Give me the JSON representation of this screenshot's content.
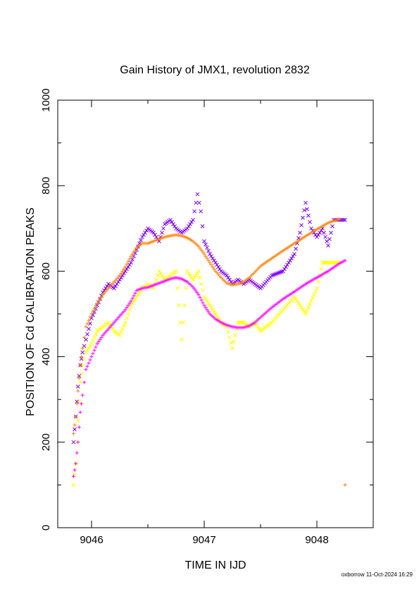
{
  "chart_data": {
    "type": "scatter",
    "title": "Gain History of JMX1, revolution 2832",
    "xlabel": "TIME IN IJD",
    "ylabel": "POSITION OF Cd CALIBRATION PEAKS",
    "xlim": [
      9045.7,
      9048.5
    ],
    "ylim": [
      0,
      1000
    ],
    "xticks": [
      9046,
      9047,
      9048
    ],
    "yticks": [
      0,
      200,
      400,
      600,
      800,
      1000
    ],
    "grid": false,
    "series": [
      {
        "color": "#7f00ff",
        "marker": "x",
        "x": [
          9045.84,
          9045.86,
          9045.88,
          9045.9,
          9045.92,
          9045.95,
          9046.0,
          9046.05,
          9046.1,
          9046.15,
          9046.2,
          9046.25,
          9046.3,
          9046.35,
          9046.4,
          9046.45,
          9046.5,
          9046.55,
          9046.6,
          9046.65,
          9046.7,
          9046.75,
          9046.8,
          9046.85,
          9046.9,
          9046.94,
          9046.97,
          9047.0,
          9047.05,
          9047.1,
          9047.15,
          9047.2,
          9047.25,
          9047.3,
          9047.35,
          9047.4,
          9047.45,
          9047.5,
          9047.6,
          9047.7,
          9047.8,
          9047.85,
          9047.9,
          9047.95,
          9048.0,
          9048.05,
          9048.1,
          9048.15,
          9048.2,
          9048.25
        ],
        "y": [
          200,
          260,
          330,
          380,
          410,
          440,
          490,
          520,
          550,
          570,
          560,
          580,
          600,
          620,
          650,
          680,
          700,
          690,
          670,
          710,
          720,
          700,
          690,
          700,
          720,
          780,
          740,
          670,
          640,
          620,
          600,
          590,
          570,
          580,
          570,
          580,
          570,
          560,
          590,
          600,
          640,
          690,
          760,
          700,
          680,
          700,
          660,
          720,
          720,
          720
        ]
      },
      {
        "color": "#ff7f00",
        "marker": "+",
        "x": [
          9045.84,
          9045.86,
          9045.88,
          9045.9,
          9045.92,
          9045.95,
          9046.0,
          9046.05,
          9046.1,
          9046.15,
          9046.2,
          9046.25,
          9046.3,
          9046.35,
          9046.4,
          9046.45,
          9046.5,
          9046.55,
          9046.6,
          9046.65,
          9046.7,
          9046.75,
          9046.8,
          9046.85,
          9046.9,
          9046.95,
          9047.0,
          9047.05,
          9047.1,
          9047.15,
          9047.2,
          9047.25,
          9047.3,
          9047.35,
          9047.4,
          9047.45,
          9047.5,
          9047.6,
          9047.7,
          9047.8,
          9047.9,
          9048.0,
          9048.1,
          9048.2,
          9048.25
        ],
        "y": [
          220,
          260,
          320,
          380,
          420,
          470,
          500,
          525,
          545,
          560,
          575,
          590,
          610,
          635,
          655,
          665,
          665,
          670,
          675,
          680,
          683,
          685,
          683,
          678,
          670,
          658,
          640,
          620,
          600,
          585,
          572,
          568,
          570,
          575,
          585,
          598,
          612,
          630,
          648,
          665,
          682,
          698,
          713,
          722,
          100
        ]
      },
      {
        "color": "#ffff00",
        "marker": "x",
        "x": [
          9045.84,
          9045.86,
          9045.88,
          9045.9,
          9045.92,
          9045.95,
          9046.0,
          9046.05,
          9046.1,
          9046.15,
          9046.2,
          9046.25,
          9046.3,
          9046.35,
          9046.4,
          9046.45,
          9046.5,
          9046.55,
          9046.6,
          9046.65,
          9046.7,
          9046.75,
          9046.8,
          9046.85,
          9046.9,
          9046.95,
          9047.0,
          9047.05,
          9047.1,
          9047.15,
          9047.2,
          9047.25,
          9047.3,
          9047.35,
          9047.4,
          9047.45,
          9047.5,
          9047.6,
          9047.7,
          9047.8,
          9047.9,
          9048.0,
          9048.05,
          9048.1,
          9048.2
        ],
        "y": [
          100,
          150,
          250,
          340,
          380,
          410,
          430,
          460,
          470,
          480,
          460,
          450,
          480,
          520,
          540,
          560,
          570,
          560,
          600,
          580,
          590,
          600,
          440,
          600,
          580,
          600,
          540,
          520,
          500,
          480,
          470,
          420,
          480,
          480,
          470,
          480,
          460,
          480,
          510,
          540,
          500,
          560,
          620,
          620,
          620
        ]
      },
      {
        "color": "#ff00ff",
        "marker": "+",
        "x": [
          9045.84,
          9045.86,
          9045.88,
          9045.9,
          9045.92,
          9045.95,
          9046.0,
          9046.05,
          9046.1,
          9046.15,
          9046.2,
          9046.25,
          9046.3,
          9046.35,
          9046.4,
          9046.45,
          9046.5,
          9046.55,
          9046.6,
          9046.65,
          9046.7,
          9046.75,
          9046.8,
          9046.85,
          9046.9,
          9046.95,
          9047.0,
          9047.05,
          9047.1,
          9047.15,
          9047.2,
          9047.25,
          9047.3,
          9047.35,
          9047.4,
          9047.45,
          9047.5,
          9047.6,
          9047.7,
          9047.8,
          9047.9,
          9048.0,
          9048.1,
          9048.2,
          9048.25
        ],
        "y": [
          120,
          150,
          200,
          270,
          310,
          370,
          400,
          430,
          450,
          465,
          480,
          495,
          510,
          530,
          555,
          560,
          562,
          567,
          572,
          577,
          582,
          585,
          582,
          575,
          563,
          545,
          520,
          500,
          488,
          480,
          474,
          470,
          468,
          468,
          472,
          480,
          492,
          515,
          535,
          552,
          570,
          585,
          600,
          618,
          625
        ]
      }
    ]
  },
  "footer": "oxborrow 11-Oct-2024 16:29"
}
